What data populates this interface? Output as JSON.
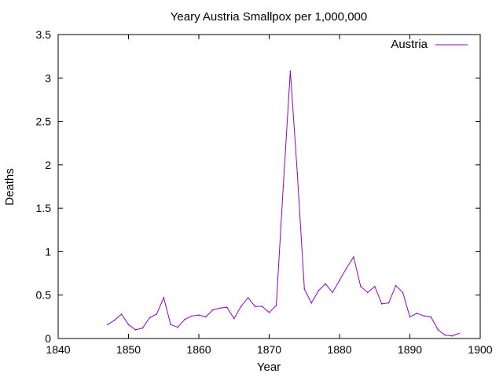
{
  "chart_data": {
    "type": "line",
    "title": "Yeary Austria Smallpox per 1,000,000",
    "xlabel": "Year",
    "ylabel": "Deaths",
    "xlim": [
      1840,
      1900
    ],
    "ylim": [
      0,
      3.5
    ],
    "xticks": [
      "1840",
      "1850",
      "1860",
      "1870",
      "1880",
      "1890",
      "1900"
    ],
    "yticks": [
      "0",
      "0.5",
      "1",
      "1.5",
      "2",
      "2.5",
      "3",
      "3.5"
    ],
    "grid": false,
    "legend_position": "top-right",
    "series": [
      {
        "name": "Austria",
        "color": "#9400d3",
        "x": [
          1847,
          1848,
          1849,
          1850,
          1851,
          1852,
          1853,
          1854,
          1855,
          1856,
          1857,
          1858,
          1859,
          1860,
          1861,
          1862,
          1863,
          1864,
          1865,
          1866,
          1867,
          1868,
          1869,
          1870,
          1871,
          1872,
          1873,
          1874,
          1875,
          1876,
          1877,
          1878,
          1879,
          1880,
          1881,
          1882,
          1883,
          1884,
          1885,
          1886,
          1887,
          1888,
          1889,
          1890,
          1891,
          1892,
          1893,
          1894,
          1895,
          1896,
          1897
        ],
        "y": [
          0.16,
          0.21,
          0.28,
          0.16,
          0.1,
          0.12,
          0.24,
          0.28,
          0.47,
          0.16,
          0.13,
          0.22,
          0.26,
          0.27,
          0.25,
          0.33,
          0.35,
          0.36,
          0.23,
          0.37,
          0.47,
          0.37,
          0.37,
          0.3,
          0.38,
          1.75,
          3.08,
          1.9,
          0.57,
          0.41,
          0.55,
          0.63,
          0.53,
          0.67,
          0.81,
          0.94,
          0.6,
          0.53,
          0.6,
          0.4,
          0.41,
          0.61,
          0.53,
          0.25,
          0.29,
          0.26,
          0.25,
          0.1,
          0.04,
          0.03,
          0.06
        ]
      }
    ]
  }
}
